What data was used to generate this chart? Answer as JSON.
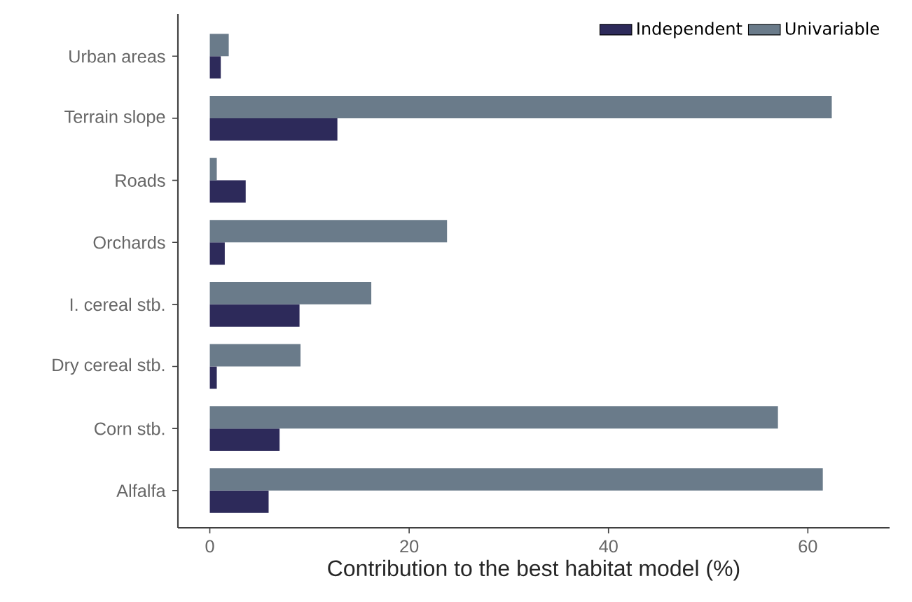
{
  "chart_data": {
    "type": "bar",
    "orientation": "horizontal",
    "xlabel": "Contribution to the best habitat model (%)",
    "categories": [
      "Urban areas",
      "Terrain slope",
      "Roads",
      "Orchards",
      "I. cereal stb.",
      "Dry cereal stb.",
      "Corn stb.",
      "Alfalfa"
    ],
    "series": [
      {
        "name": "Independent",
        "color": "#2d2a5a",
        "values": [
          1.1,
          12.8,
          3.6,
          1.5,
          9.0,
          0.7,
          7.0,
          5.9
        ]
      },
      {
        "name": "Univariable",
        "color": "#6a7b8a",
        "values": [
          1.9,
          62.4,
          0.7,
          23.8,
          16.2,
          9.1,
          57.0,
          61.5
        ]
      }
    ],
    "xlim": [
      -3.2,
      68.2
    ],
    "xticks": [
      0,
      20,
      40,
      60
    ],
    "grid": false,
    "legend": "top right"
  }
}
